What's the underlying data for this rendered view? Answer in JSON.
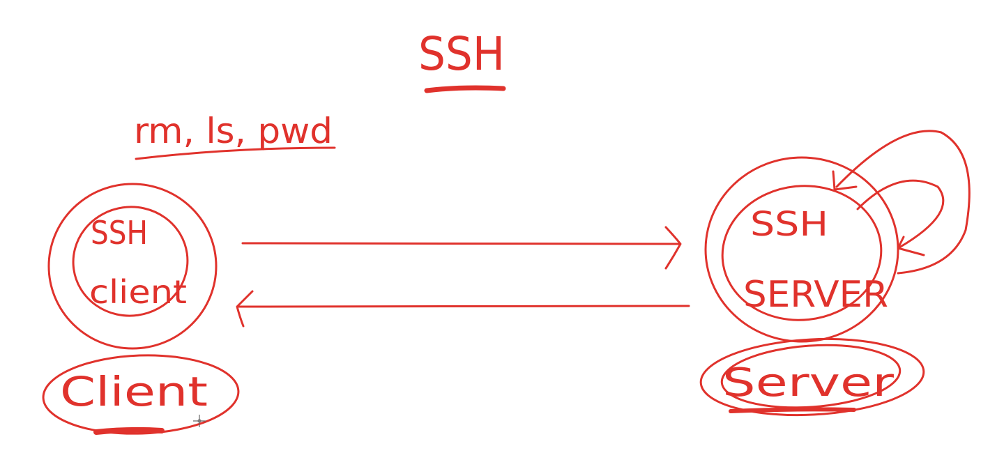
{
  "title": "SSH",
  "commands": "rm, ls, pwd",
  "client_node": {
    "inner_line1": "SSH",
    "inner_line2": "client",
    "label": "Client"
  },
  "server_node": {
    "inner_line1": "SSH",
    "inner_line2": "SERVER",
    "label": "Server"
  },
  "colors": {
    "ink": "#e0322c",
    "background": "#ffffff"
  },
  "icons": {
    "cursor": "crosshair-cursor-icon"
  }
}
